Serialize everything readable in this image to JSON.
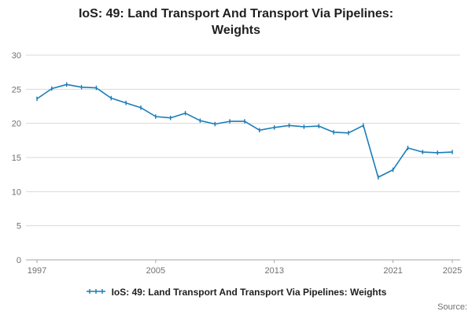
{
  "title": "IoS: 49: Land Transport And Transport Via Pipelines: Weights",
  "source_label": "Source:",
  "legend": {
    "label": "IoS: 49: Land Transport And Transport Via Pipelines: Weights"
  },
  "colors": {
    "line": "#1a7db6",
    "grid": "#d9d9d9",
    "axis": "#a6a6a6",
    "tick_text": "#707070",
    "title_text": "#1f1f1f"
  },
  "chart_data": {
    "type": "line",
    "title": "IoS: 49: Land Transport And Transport Via Pipelines: Weights",
    "xlabel": "",
    "ylabel": "",
    "grid": true,
    "legend_position": "bottom",
    "ylim": [
      0,
      30
    ],
    "yticks": [
      0,
      5,
      10,
      15,
      20,
      25,
      30
    ],
    "xticks": [
      1997,
      2005,
      2013,
      2021,
      2025
    ],
    "x": [
      1997,
      1998,
      1999,
      2000,
      2001,
      2002,
      2003,
      2004,
      2005,
      2006,
      2007,
      2008,
      2009,
      2010,
      2011,
      2012,
      2013,
      2014,
      2015,
      2016,
      2017,
      2018,
      2019,
      2020,
      2021,
      2022,
      2023,
      2024,
      2025
    ],
    "series": [
      {
        "name": "IoS: 49: Land Transport And Transport Via Pipelines: Weights",
        "values": [
          23.6,
          25.1,
          25.7,
          25.3,
          25.2,
          23.7,
          23.0,
          22.3,
          21.0,
          20.8,
          21.5,
          20.4,
          19.9,
          20.3,
          20.3,
          19.0,
          19.4,
          19.7,
          19.5,
          19.6,
          18.7,
          18.6,
          19.7,
          12.1,
          13.2,
          16.4,
          15.8,
          15.7,
          15.8
        ]
      }
    ]
  }
}
